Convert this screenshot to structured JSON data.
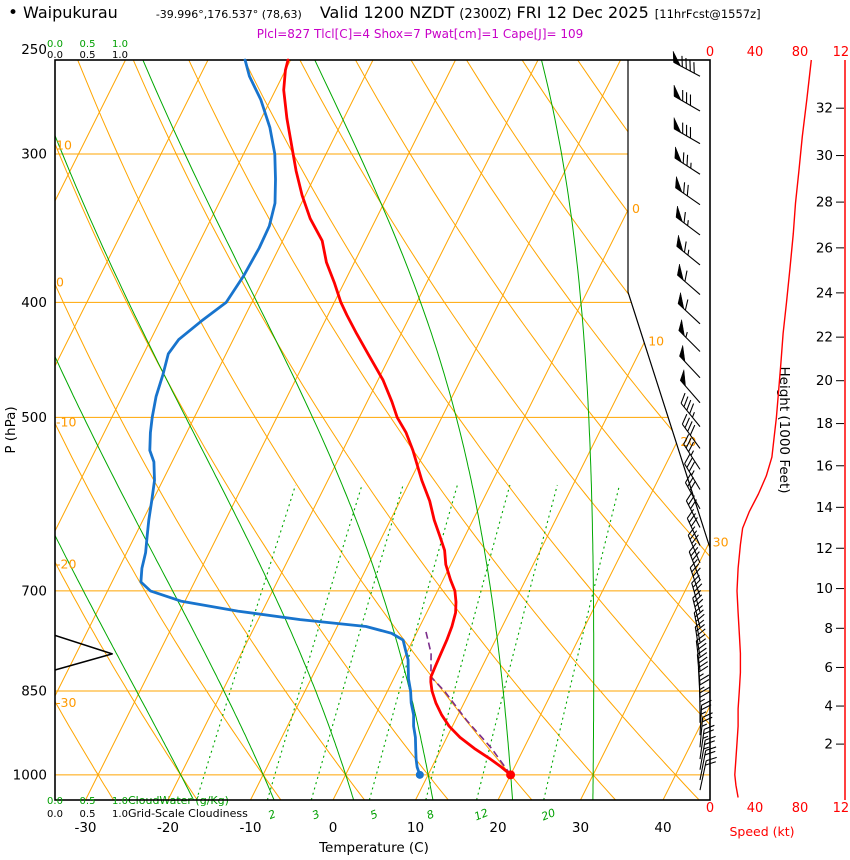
{
  "header": {
    "bullet": "•",
    "station": "Waipukurau",
    "coords": "-39.996°,176.537° (78,63)",
    "valid_main": "Valid 1200 NZDT",
    "valid_z": "(2300Z)",
    "valid_date": "FRI 12 Dec 2025",
    "fcst_note": "[11hrFcst@1557z]",
    "indices": "Plcl=827 Tlcl[C]=4 Shox=7 Pwat[cm]=1 Cape[J]= 109"
  },
  "axes": {
    "pressure_label": "P (hPa)",
    "temperature_label": "Temperature (C)",
    "height_label": "Height (1000 Feet)",
    "speed_label": "Speed (kt)",
    "cloudwater_label": "CloudWater (g/Kg)",
    "cloudiness_label": "Grid-Scale Cloudiness",
    "pressure_ticks": [
      250,
      300,
      400,
      500,
      700,
      850,
      1000
    ],
    "temperature_ticks": [
      -30,
      -20,
      -10,
      0,
      10,
      20,
      30,
      40
    ],
    "height_ticks": [
      2,
      4,
      6,
      8,
      10,
      12,
      14,
      16,
      18,
      20,
      22,
      24,
      26,
      28,
      30,
      32
    ],
    "speed_ticks": [
      0,
      40,
      80,
      120
    ],
    "cloud_scale_ticks": [
      "0.0",
      "0.5",
      "1.0"
    ]
  },
  "chart_data": {
    "type": "skewt-log-p",
    "station": "Waipukurau",
    "valid": "1200 NZDT (2300Z) FRI 12 Dec 2025",
    "indices": {
      "Plcl_hPa": 827,
      "Tlcl_C": 4,
      "Showalter": 7,
      "Pwat_cm": 1,
      "Cape_J": 109
    },
    "pressure_range_hPa": [
      250,
      1050
    ],
    "isotherm_step_C": 10,
    "moist_adiabats_C": [
      -20,
      -10,
      0,
      10,
      20,
      30
    ],
    "mixing_ratio_lines_gkg": [
      1,
      2,
      3,
      5,
      8,
      12,
      20
    ],
    "mixing_ratio_labels_gkg": [
      2,
      3,
      5,
      8,
      12,
      20
    ],
    "isotherm_labels_C": [
      0,
      10,
      20,
      30
    ],
    "dry_adiabat_labels": [
      {
        "value": 10,
        "color": "#00A000"
      },
      {
        "value": 0,
        "color": "#FF9900"
      },
      {
        "value": -10,
        "color": "#FF9900"
      },
      {
        "value": -20,
        "color": "#FF9900"
      },
      {
        "value": -30,
        "color": "#FF9900"
      }
    ],
    "surface_temperature_C": 20,
    "surface_dewpoint_C": 9,
    "temperature_profile": [
      [
        1000,
        20
      ],
      [
        985,
        18.4
      ],
      [
        970,
        16.6
      ],
      [
        950,
        14.0
      ],
      [
        930,
        11.6
      ],
      [
        910,
        9.6
      ],
      [
        890,
        8.0
      ],
      [
        870,
        6.6
      ],
      [
        850,
        5.4
      ],
      [
        835,
        4.7
      ],
      [
        827,
        4.4
      ],
      [
        810,
        4.3
      ],
      [
        790,
        4.2
      ],
      [
        770,
        4.1
      ],
      [
        750,
        3.9
      ],
      [
        730,
        3.5
      ],
      [
        715,
        2.9
      ],
      [
        700,
        2.1
      ],
      [
        685,
        0.9
      ],
      [
        665,
        -0.6
      ],
      [
        647,
        -1.6
      ],
      [
        630,
        -3.0
      ],
      [
        610,
        -4.7
      ],
      [
        588,
        -6.4
      ],
      [
        565,
        -8.6
      ],
      [
        545,
        -10.4
      ],
      [
        533,
        -11.5
      ],
      [
        515,
        -13.4
      ],
      [
        500,
        -15.4
      ],
      [
        485,
        -17.0
      ],
      [
        465,
        -19.4
      ],
      [
        442,
        -22.8
      ],
      [
        425,
        -25.4
      ],
      [
        410,
        -27.7
      ],
      [
        400,
        -29.2
      ],
      [
        385,
        -31.2
      ],
      [
        370,
        -33.4
      ],
      [
        355,
        -35.2
      ],
      [
        340,
        -38.0
      ],
      [
        325,
        -40.4
      ],
      [
        310,
        -42.6
      ],
      [
        295,
        -44.7
      ],
      [
        280,
        -46.9
      ],
      [
        265,
        -49.0
      ],
      [
        255,
        -50.0
      ],
      [
        250,
        -50.3
      ]
    ],
    "dewpoint_profile": [
      [
        1000,
        9.0
      ],
      [
        985,
        8.2
      ],
      [
        970,
        7.6
      ],
      [
        950,
        6.9
      ],
      [
        930,
        6.2
      ],
      [
        910,
        5.3
      ],
      [
        890,
        4.6
      ],
      [
        870,
        3.6
      ],
      [
        850,
        2.8
      ],
      [
        830,
        1.8
      ],
      [
        810,
        1.0
      ],
      [
        800,
        0.6
      ],
      [
        785,
        -0.3
      ],
      [
        770,
        -1.2
      ],
      [
        760,
        -3.0
      ],
      [
        750,
        -6.5
      ],
      [
        740,
        -14.9
      ],
      [
        728,
        -23.0
      ],
      [
        714,
        -30.5
      ],
      [
        700,
        -34.8
      ],
      [
        688,
        -36.5
      ],
      [
        670,
        -37.2
      ],
      [
        650,
        -37.7
      ],
      [
        630,
        -38.5
      ],
      [
        610,
        -39.3
      ],
      [
        588,
        -40.1
      ],
      [
        565,
        -41.0
      ],
      [
        545,
        -42.2
      ],
      [
        533,
        -43.4
      ],
      [
        515,
        -44.4
      ],
      [
        500,
        -45.1
      ],
      [
        480,
        -45.9
      ],
      [
        460,
        -46.4
      ],
      [
        442,
        -47.0
      ],
      [
        430,
        -46.6
      ],
      [
        415,
        -45.0
      ],
      [
        400,
        -43.1
      ],
      [
        380,
        -42.6
      ],
      [
        360,
        -42.4
      ],
      [
        345,
        -42.5
      ],
      [
        330,
        -43.2
      ],
      [
        315,
        -44.6
      ],
      [
        300,
        -46.2
      ],
      [
        285,
        -48.4
      ],
      [
        270,
        -51.2
      ],
      [
        258,
        -54.0
      ],
      [
        250,
        -55.5
      ]
    ],
    "parcel_path": [
      [
        1000,
        20
      ],
      [
        950,
        16.1
      ],
      [
        900,
        11.4
      ],
      [
        850,
        6.9
      ],
      [
        827,
        4.4
      ],
      [
        790,
        3.0
      ],
      [
        755,
        0.9
      ]
    ],
    "cloudiness_profile": [
      [
        763,
        0
      ],
      [
        791,
        0.88
      ],
      [
        816,
        0
      ]
    ],
    "wind_speed_profile_kt": [
      [
        250,
        90
      ],
      [
        270,
        86
      ],
      [
        290,
        82
      ],
      [
        310,
        79
      ],
      [
        330,
        76
      ],
      [
        350,
        74
      ],
      [
        375,
        71
      ],
      [
        400,
        68
      ],
      [
        425,
        65
      ],
      [
        450,
        63
      ],
      [
        475,
        61
      ],
      [
        500,
        59
      ],
      [
        520,
        57
      ],
      [
        540,
        55
      ],
      [
        560,
        50
      ],
      [
        580,
        43
      ],
      [
        600,
        35
      ],
      [
        620,
        29
      ],
      [
        640,
        27
      ],
      [
        670,
        25
      ],
      [
        700,
        24
      ],
      [
        730,
        25
      ],
      [
        760,
        26
      ],
      [
        790,
        27
      ],
      [
        820,
        27
      ],
      [
        850,
        26
      ],
      [
        880,
        25
      ],
      [
        910,
        25
      ],
      [
        940,
        24
      ],
      [
        970,
        23
      ],
      [
        1000,
        22
      ],
      [
        1020,
        23
      ],
      [
        1045,
        25
      ]
    ],
    "wind_barbs": [
      [
        258,
        298,
        88
      ],
      [
        276,
        300,
        82
      ],
      [
        294,
        300,
        78
      ],
      [
        312,
        303,
        74
      ],
      [
        331,
        305,
        70
      ],
      [
        351,
        307,
        67
      ],
      [
        372,
        309,
        64
      ],
      [
        394,
        311,
        61
      ],
      [
        417,
        313,
        58
      ],
      [
        440,
        315,
        55
      ],
      [
        463,
        317,
        52
      ],
      [
        486,
        319,
        48
      ],
      [
        509,
        321,
        45
      ],
      [
        531,
        324,
        40
      ],
      [
        553,
        327,
        36
      ],
      [
        575,
        329,
        33
      ],
      [
        597,
        331,
        30
      ],
      [
        619,
        333,
        29
      ],
      [
        641,
        335,
        28
      ],
      [
        663,
        337,
        28
      ],
      [
        685,
        339,
        29
      ],
      [
        707,
        341,
        30
      ],
      [
        729,
        344,
        30
      ],
      [
        751,
        346,
        30
      ],
      [
        773,
        349,
        30
      ],
      [
        795,
        351,
        29
      ],
      [
        817,
        353,
        28
      ],
      [
        839,
        355,
        28
      ],
      [
        861,
        357,
        27
      ],
      [
        883,
        359,
        27
      ],
      [
        904,
        0,
        26
      ],
      [
        926,
        3,
        25
      ],
      [
        948,
        5,
        24
      ],
      [
        970,
        8,
        23
      ],
      [
        990,
        10,
        23
      ],
      [
        1010,
        11,
        22
      ],
      [
        1030,
        12,
        22
      ]
    ],
    "colors": {
      "temperature": "#FF0000",
      "dewpoint": "#1874CD",
      "parcel": "#7B2D8B",
      "grid_orange": "#FFA500",
      "grid_green": "#00A800",
      "labels_green": "#00A000",
      "speed": "#FF0000",
      "indices_magenta": "#C800C8",
      "cloudiness": "#000000"
    }
  }
}
